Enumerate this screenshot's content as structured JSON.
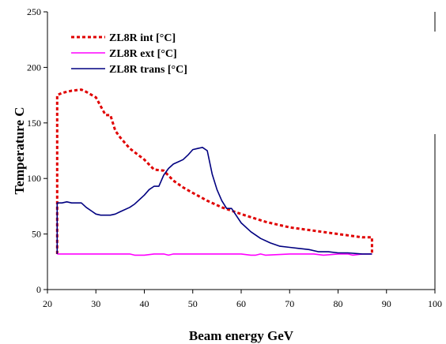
{
  "chart_data": {
    "type": "line",
    "xlabel": "Beam energy GeV",
    "ylabel": "Temperature C",
    "xlim": [
      20,
      100
    ],
    "ylim": [
      0,
      250
    ],
    "x_ticks": [
      20,
      30,
      40,
      50,
      60,
      70,
      80,
      90,
      100
    ],
    "y_ticks": [
      0,
      50,
      100,
      150,
      200,
      250
    ],
    "x_tick_labels": [
      "20",
      "30",
      "40",
      "50",
      "60",
      "70",
      "80",
      "90",
      "100"
    ],
    "y_tick_labels": [
      "0",
      "50",
      "100",
      "150",
      "200",
      "250"
    ],
    "grid": false,
    "legend_position": "top-left",
    "series": [
      {
        "name": "ZL8R int [°C]",
        "color": "#e00000",
        "style": "dotted",
        "x": [
          22,
          22,
          23,
          25,
          27,
          28,
          30,
          31,
          32,
          33,
          34,
          35,
          37,
          40,
          42,
          44,
          46,
          48,
          50,
          53,
          56,
          60,
          65,
          70,
          75,
          80,
          85,
          87,
          87
        ],
        "y": [
          32,
          175,
          177,
          179,
          180,
          178,
          173,
          165,
          157,
          157,
          143,
          137,
          127,
          117,
          108,
          107,
          98,
          92,
          87,
          80,
          74,
          68,
          61,
          56,
          53,
          50,
          47,
          47,
          32
        ]
      },
      {
        "name": "ZL8R ext [°C]",
        "color": "#ff00ff",
        "style": "solid",
        "x": [
          22,
          25,
          30,
          35,
          37,
          38,
          40,
          42,
          44,
          45,
          46,
          48,
          50,
          55,
          60,
          62,
          63,
          64,
          65,
          70,
          75,
          77,
          80,
          82,
          83,
          85,
          87
        ],
        "y": [
          32,
          32,
          32,
          32,
          32,
          31,
          31,
          32,
          32,
          31,
          32,
          32,
          32,
          32,
          32,
          31,
          31,
          32,
          31,
          32,
          32,
          31,
          32,
          32,
          31,
          32,
          32
        ]
      },
      {
        "name": "ZL8R trans [°C]",
        "color": "#000080",
        "style": "solid",
        "x": [
          22,
          22,
          23,
          24,
          25,
          27,
          28,
          29,
          30,
          31,
          33,
          34,
          35,
          37,
          38,
          40,
          41,
          42,
          43,
          44,
          45,
          46,
          47,
          48,
          49,
          50,
          51,
          52,
          53,
          54,
          55,
          56,
          57,
          58,
          60,
          62,
          64,
          66,
          68,
          70,
          72,
          74,
          76,
          78,
          80,
          82,
          85,
          87,
          87
        ],
        "y": [
          32,
          78,
          78,
          79,
          78,
          78,
          74,
          71,
          68,
          67,
          67,
          68,
          70,
          74,
          77,
          85,
          90,
          93,
          93,
          103,
          109,
          113,
          115,
          117,
          121,
          126,
          127,
          128,
          125,
          104,
          90,
          80,
          73,
          73,
          60,
          52,
          46,
          42,
          39,
          38,
          37,
          36,
          34,
          34,
          33,
          33,
          32,
          32,
          32
        ]
      }
    ]
  }
}
